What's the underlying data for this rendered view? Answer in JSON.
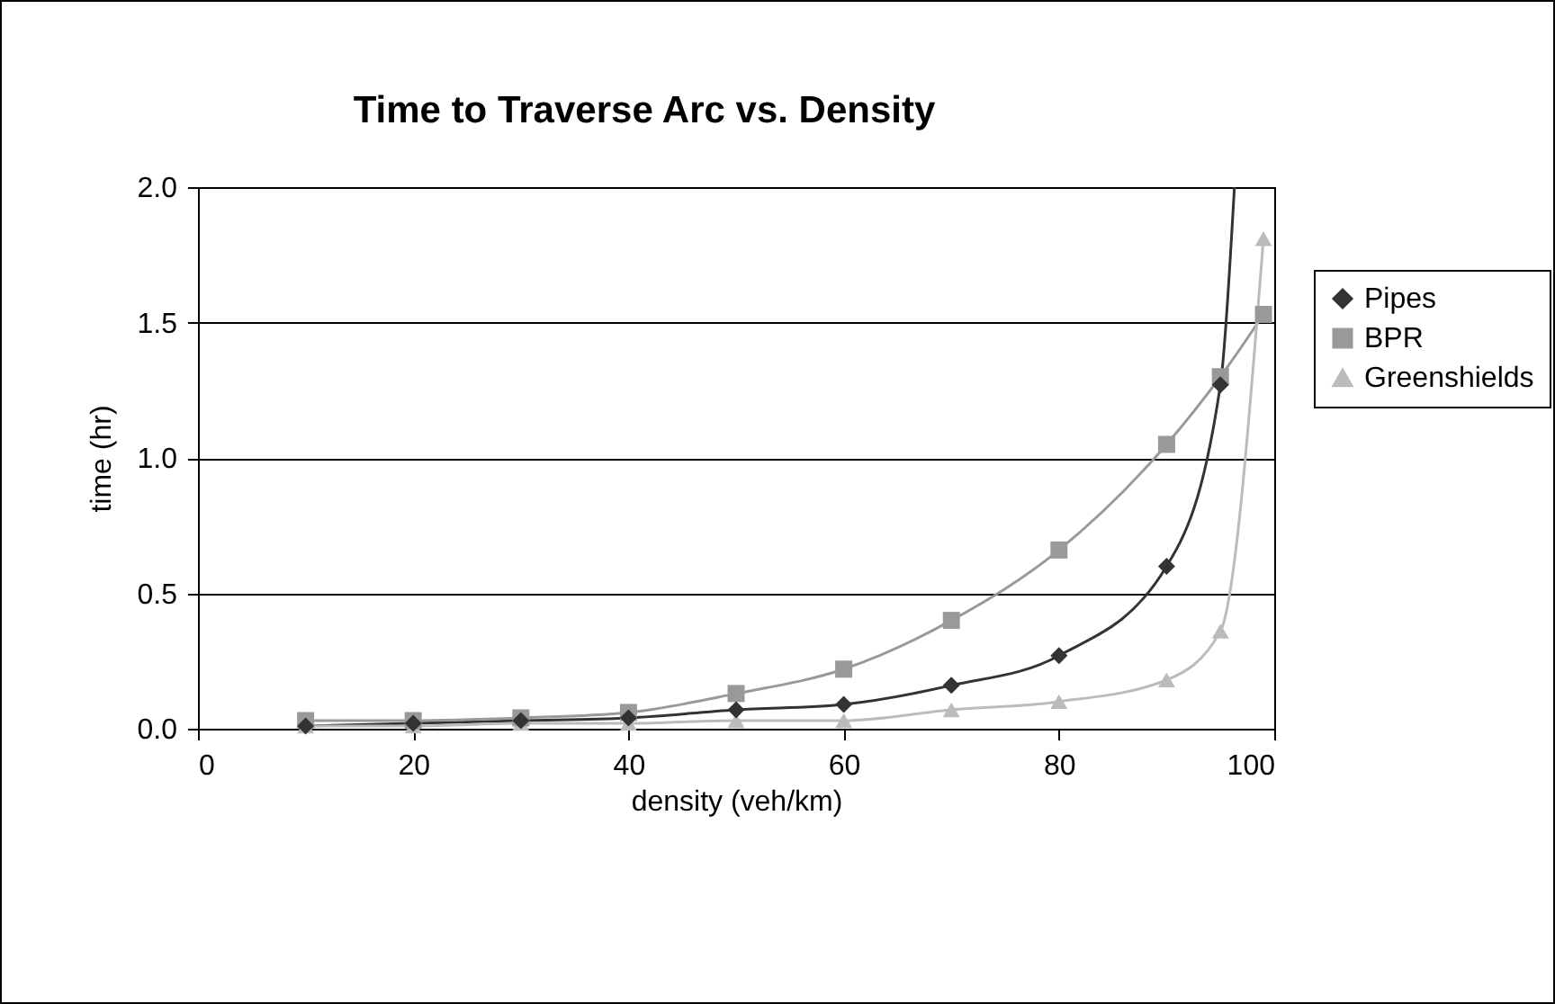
{
  "chart_data": {
    "type": "line",
    "title": "Time to Traverse Arc vs. Density",
    "xlabel": "density (veh/km)",
    "ylabel": "time (hr)",
    "xlim": [
      0,
      100
    ],
    "xticks": [
      0,
      20,
      40,
      60,
      80,
      100
    ],
    "ylim": [
      0,
      2
    ],
    "yticks": [
      {
        "value": 0,
        "label": "0.0"
      },
      {
        "value": 0.5,
        "label": "0.5"
      },
      {
        "value": 1,
        "label": "1.0"
      },
      {
        "value": 1.5,
        "label": "1.5"
      },
      {
        "value": 2,
        "label": "2.0"
      }
    ],
    "grid": "y",
    "legend": "right",
    "series": [
      {
        "name": "Pipes",
        "color": "#333333",
        "marker": "diamond",
        "x": [
          10,
          20,
          30,
          40,
          50,
          60,
          70,
          80,
          90,
          95,
          96.3
        ],
        "values": [
          0.01,
          0.02,
          0.03,
          0.04,
          0.07,
          0.09,
          0.16,
          0.27,
          0.6,
          1.27,
          2.0
        ]
      },
      {
        "name": "BPR",
        "color": "#999999",
        "marker": "square",
        "x": [
          10,
          20,
          30,
          40,
          50,
          60,
          70,
          80,
          90,
          95,
          99
        ],
        "values": [
          0.03,
          0.03,
          0.04,
          0.06,
          0.13,
          0.22,
          0.4,
          0.66,
          1.05,
          1.3,
          1.53
        ]
      },
      {
        "name": "Greenshields",
        "color": "#bbbbbb",
        "marker": "triangle",
        "x": [
          10,
          20,
          30,
          40,
          50,
          60,
          70,
          80,
          90,
          95,
          99
        ],
        "values": [
          0.01,
          0.01,
          0.02,
          0.02,
          0.03,
          0.03,
          0.07,
          0.1,
          0.18,
          0.36,
          1.81
        ]
      }
    ]
  }
}
